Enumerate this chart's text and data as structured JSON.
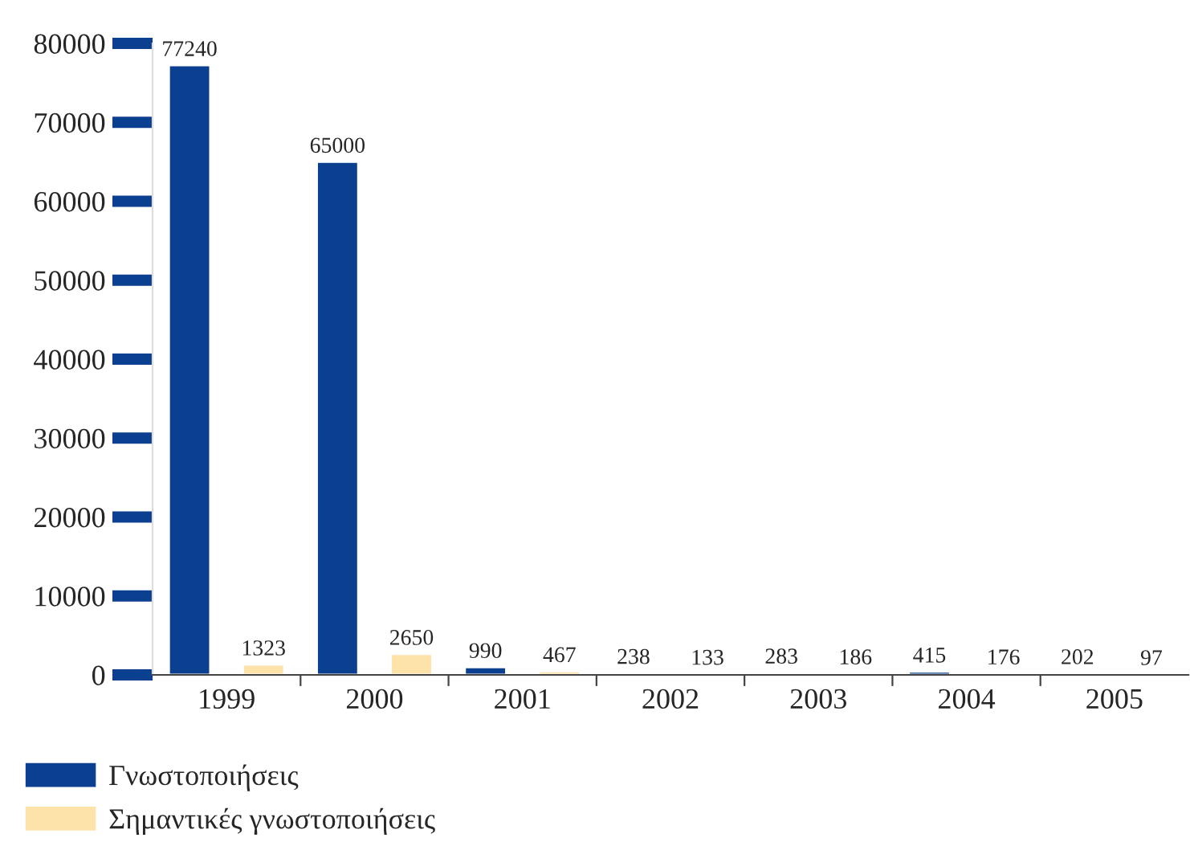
{
  "chart_data": {
    "type": "bar",
    "categories": [
      "1999",
      "2000",
      "2001",
      "2002",
      "2003",
      "2004",
      "2005"
    ],
    "series": [
      {
        "name": "Γνωστοποιήσεις",
        "color": "#0b3f8f",
        "values": [
          77240,
          65000,
          990,
          238,
          283,
          415,
          202
        ]
      },
      {
        "name": "Σημαντικές γνωστοποιήσεις",
        "color": "#fde2aa",
        "values": [
          1323,
          2650,
          467,
          133,
          186,
          176,
          97
        ]
      }
    ],
    "ylim": [
      0,
      80000
    ],
    "yticks": [
      0,
      10000,
      20000,
      30000,
      40000,
      50000,
      60000,
      70000,
      80000
    ],
    "data_labels": true,
    "grid": false,
    "legend": "bottom left"
  }
}
